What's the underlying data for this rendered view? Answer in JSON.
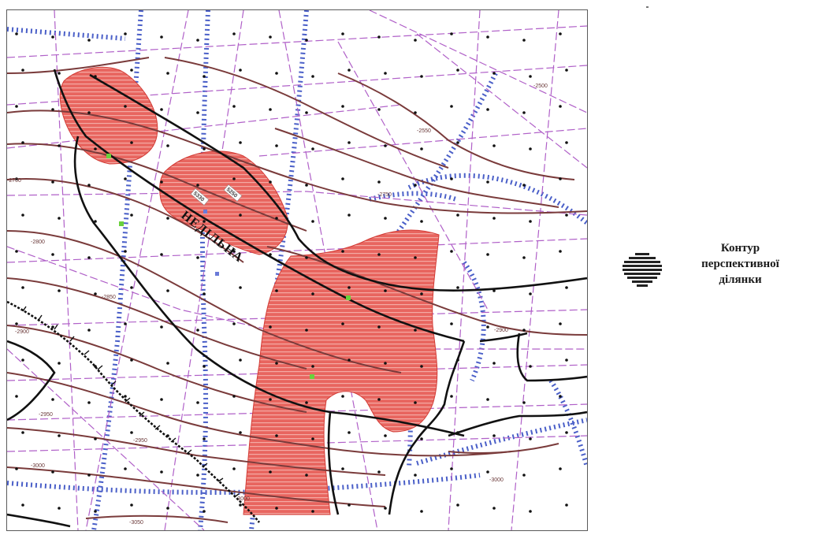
{
  "map": {
    "structure_name": "НЕДІЛЬНА",
    "contour_labels": [
      "-2500",
      "-2550",
      "-2700",
      "-2750",
      "-2800",
      "-2850",
      "-2900",
      "-2950",
      "-3000",
      "-3050"
    ],
    "well_labels": [
      "5330",
      "5250"
    ],
    "colors": {
      "prospect_fill": "#e8655f",
      "prospect_stripe": "#f3a6a0",
      "fault": "#111111",
      "contour": "#7a3b3b",
      "seismic_profile": "#b060c8",
      "anomaly_band": "#4a5fc8",
      "well_green": "#6ad13c",
      "well_blue": "#6a7ad8"
    }
  },
  "legend": {
    "title_line1": "Контур",
    "title_line2": "перспективної",
    "title_line3": "ділянки"
  }
}
